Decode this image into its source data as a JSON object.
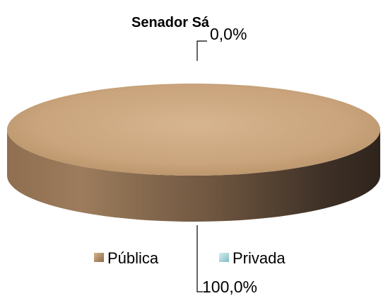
{
  "chart_data": {
    "type": "pie",
    "title": "Senador Sá",
    "categories": [
      "Pública",
      "Privada"
    ],
    "values": [
      100.0,
      0.0
    ],
    "data_labels": [
      "100,0%",
      "0,0%"
    ],
    "series": [
      {
        "name": "Pública",
        "value": 100.0,
        "color": "#C9A47C"
      },
      {
        "name": "Privada",
        "value": 0.0,
        "color": "#9FD4DA"
      }
    ],
    "legend_position": "bottom",
    "style": "3d"
  }
}
